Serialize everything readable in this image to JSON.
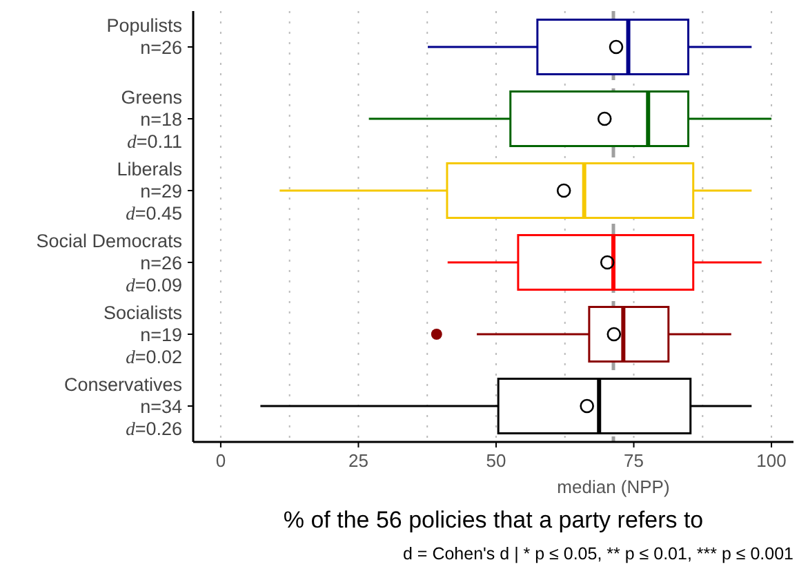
{
  "chart_data": {
    "type": "box",
    "orientation": "horizontal",
    "categories": [
      "Populists\nn=26",
      "Greens\nn=18\nd=0.11",
      "Liberals\nn=29\nd=0.45",
      "Social Democrats\nn=26\nd=0.09",
      "Socialists\nn=19\nd=0.02",
      "Conservatives\nn=34\nd=0.26"
    ],
    "colors": [
      "#00008b",
      "#006400",
      "#f5c800",
      "#ff0000",
      "#8b0000",
      "#000000"
    ],
    "boxes": [
      {
        "low": 37.6,
        "q1": 57.5,
        "median": 74.0,
        "q3": 84.9,
        "high": 96.4,
        "mean": 71.8
      },
      {
        "low": 26.9,
        "q1": 52.6,
        "median": 77.6,
        "q3": 84.9,
        "high": 100,
        "mean": 69.7
      },
      {
        "low": 10.7,
        "q1": 41.1,
        "median": 66.0,
        "q3": 85.8,
        "high": 96.4,
        "mean": 62.3
      },
      {
        "low": 41.2,
        "q1": 54.0,
        "median": 71.3,
        "q3": 85.8,
        "high": 98.2,
        "mean": 70.2
      },
      {
        "low": 46.5,
        "q1": 66.9,
        "median": 73.1,
        "q3": 81.3,
        "high": 92.7,
        "mean": 71.4,
        "outliers": [
          39.2
        ]
      },
      {
        "low": 7.2,
        "q1": 50.4,
        "median": 68.7,
        "q3": 85.3,
        "high": 96.4,
        "mean": 66.5
      }
    ],
    "xlim": [
      -5,
      104
    ],
    "xticks": [
      0,
      25,
      50,
      75,
      100
    ],
    "grid": "x",
    "xlabel": "% of the 56 policies that a party refers to",
    "ref_lines": [
      {
        "axis": "x",
        "value": 71.3,
        "label": "median (NPP)",
        "color": "#a0a0a0",
        "line_style": "dashed"
      }
    ],
    "annotations": [
      "d = Cohen's d | * p ≤ 0.05, ** p ≤ 0.01, *** p ≤ 0.001"
    ]
  }
}
